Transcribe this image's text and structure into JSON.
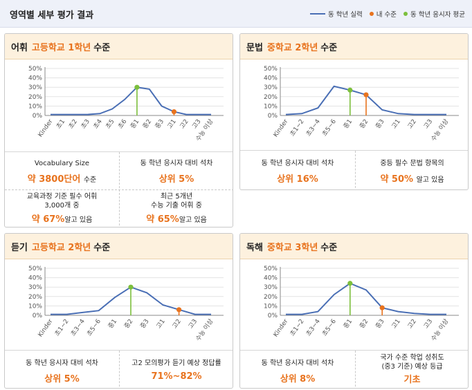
{
  "header": {
    "title": "영역별 세부 평가 결과"
  },
  "legend": [
    {
      "label": "동 학년 실력",
      "color": "#4a6fb5",
      "shape": "line"
    },
    {
      "label": "내 수준",
      "color": "#e8731e",
      "shape": "dot"
    },
    {
      "label": "동 학년 응시자 평균",
      "color": "#7cbf3c",
      "shape": "dot"
    }
  ],
  "panels": {
    "vocab": {
      "area": "어휘",
      "level": "고등학교 1학년",
      "suffix": "수준",
      "stats": [
        {
          "label": "Vocabulary Size",
          "value": "약 3800단어",
          "unit": "수준"
        },
        {
          "label": "동 학년 응시자 대비 석차",
          "value": "상위 5%",
          "unit": ""
        },
        {
          "label": "교육과정 기준 필수 어휘\n3,000개 중",
          "value": "약 67%",
          "unit": "알고 있음"
        },
        {
          "label": "최근 5개년\n수능 기출 어휘 중",
          "value": "약 65%",
          "unit": "알고 있음"
        }
      ]
    },
    "grammar": {
      "area": "문법",
      "level": "중학교 2학년",
      "suffix": "수준",
      "stats": [
        {
          "label": "동 학년 응시자 대비 석차",
          "value": "상위 16%",
          "unit": ""
        },
        {
          "label": "중등 필수 문법 항목의",
          "value": "약 50%",
          "unit": "알고 있음"
        }
      ]
    },
    "listening": {
      "area": "듣기",
      "level": "고등학교 2학년",
      "suffix": "수준",
      "stats": [
        {
          "label": "동 학년 응시자 대비 석차",
          "value": "상위 5%",
          "unit": ""
        },
        {
          "label": "고2 모의평가 듣기 예상 정답률",
          "value": "71%~82%",
          "unit": ""
        }
      ]
    },
    "reading": {
      "area": "독해",
      "level": "중학교 3학년",
      "suffix": "수준",
      "stats": [
        {
          "label": "동 학년 응시자 대비 석차",
          "value": "상위 8%",
          "unit": ""
        },
        {
          "label": "국가 수준 학업 성취도\n(중3 기준) 예상 등급",
          "value": "기초",
          "unit": ""
        }
      ]
    }
  },
  "chart_data": [
    {
      "id": "vocab",
      "type": "line",
      "title": "어휘",
      "x": [
        "Kinder",
        "초1",
        "초2",
        "초3",
        "초4",
        "초5",
        "초6",
        "중1",
        "중2",
        "중3",
        "고1",
        "고2",
        "고3",
        "수능 이상"
      ],
      "series": [
        {
          "name": "동 학년 실력",
          "values": [
            1,
            1,
            1,
            1,
            2,
            7,
            17,
            30,
            28,
            10,
            4,
            1,
            1,
            1
          ]
        }
      ],
      "my_level_index": 10,
      "my_level_value": 4,
      "avg_index": 7,
      "avg_value": 30,
      "yticks": [
        "0%",
        "5%",
        "10%",
        "15%",
        "20%",
        "25%",
        "30%",
        "35%",
        "40%",
        "45%",
        "50%"
      ],
      "ylim": [
        0,
        50
      ]
    },
    {
      "id": "grammar",
      "type": "line",
      "title": "문법",
      "x": [
        "Kinder",
        "초1~2",
        "초3~4",
        "초5~6",
        "중1",
        "중2",
        "중3",
        "고1",
        "고2",
        "고3",
        "수능 이상"
      ],
      "series": [
        {
          "name": "동 학년 실력",
          "values": [
            1,
            2,
            8,
            31,
            27,
            22,
            6,
            2,
            1,
            1,
            1
          ]
        }
      ],
      "my_level_index": 5,
      "my_level_value": 22,
      "avg_index": 4,
      "avg_value": 27,
      "yticks": [
        "0%",
        "5%",
        "10%",
        "15%",
        "20%",
        "25%",
        "30%",
        "35%",
        "40%",
        "45%",
        "50%"
      ],
      "ylim": [
        0,
        50
      ]
    },
    {
      "id": "listening",
      "type": "line",
      "title": "듣기",
      "x": [
        "Kinder",
        "초1~2",
        "초3~4",
        "초5~6",
        "중1",
        "중2",
        "중3",
        "고1",
        "고2",
        "고3",
        "수능 이상"
      ],
      "series": [
        {
          "name": "동 학년 실력",
          "values": [
            1,
            1,
            3,
            5,
            19,
            30,
            24,
            11,
            6,
            1,
            1
          ]
        }
      ],
      "my_level_index": 8,
      "my_level_value": 6,
      "avg_index": 5,
      "avg_value": 30,
      "yticks": [
        "0%",
        "5%",
        "10%",
        "15%",
        "20%",
        "25%",
        "30%",
        "35%",
        "40%",
        "45%",
        "50%"
      ],
      "ylim": [
        0,
        50
      ]
    },
    {
      "id": "reading",
      "type": "line",
      "title": "독해",
      "x": [
        "Kinder",
        "초1~2",
        "초3~4",
        "초5~6",
        "중1",
        "중2",
        "중3",
        "고1",
        "고2",
        "고3",
        "수능 이상"
      ],
      "series": [
        {
          "name": "동 학년 실력",
          "values": [
            1,
            1,
            4,
            22,
            34,
            27,
            8,
            4,
            2,
            1,
            1
          ]
        }
      ],
      "my_level_index": 6,
      "my_level_value": 8,
      "avg_index": 4,
      "avg_value": 34,
      "yticks": [
        "0%",
        "5%",
        "10%",
        "15%",
        "20%",
        "25%",
        "30%",
        "35%",
        "40%",
        "45%",
        "50%"
      ],
      "ylim": [
        0,
        50
      ]
    }
  ]
}
